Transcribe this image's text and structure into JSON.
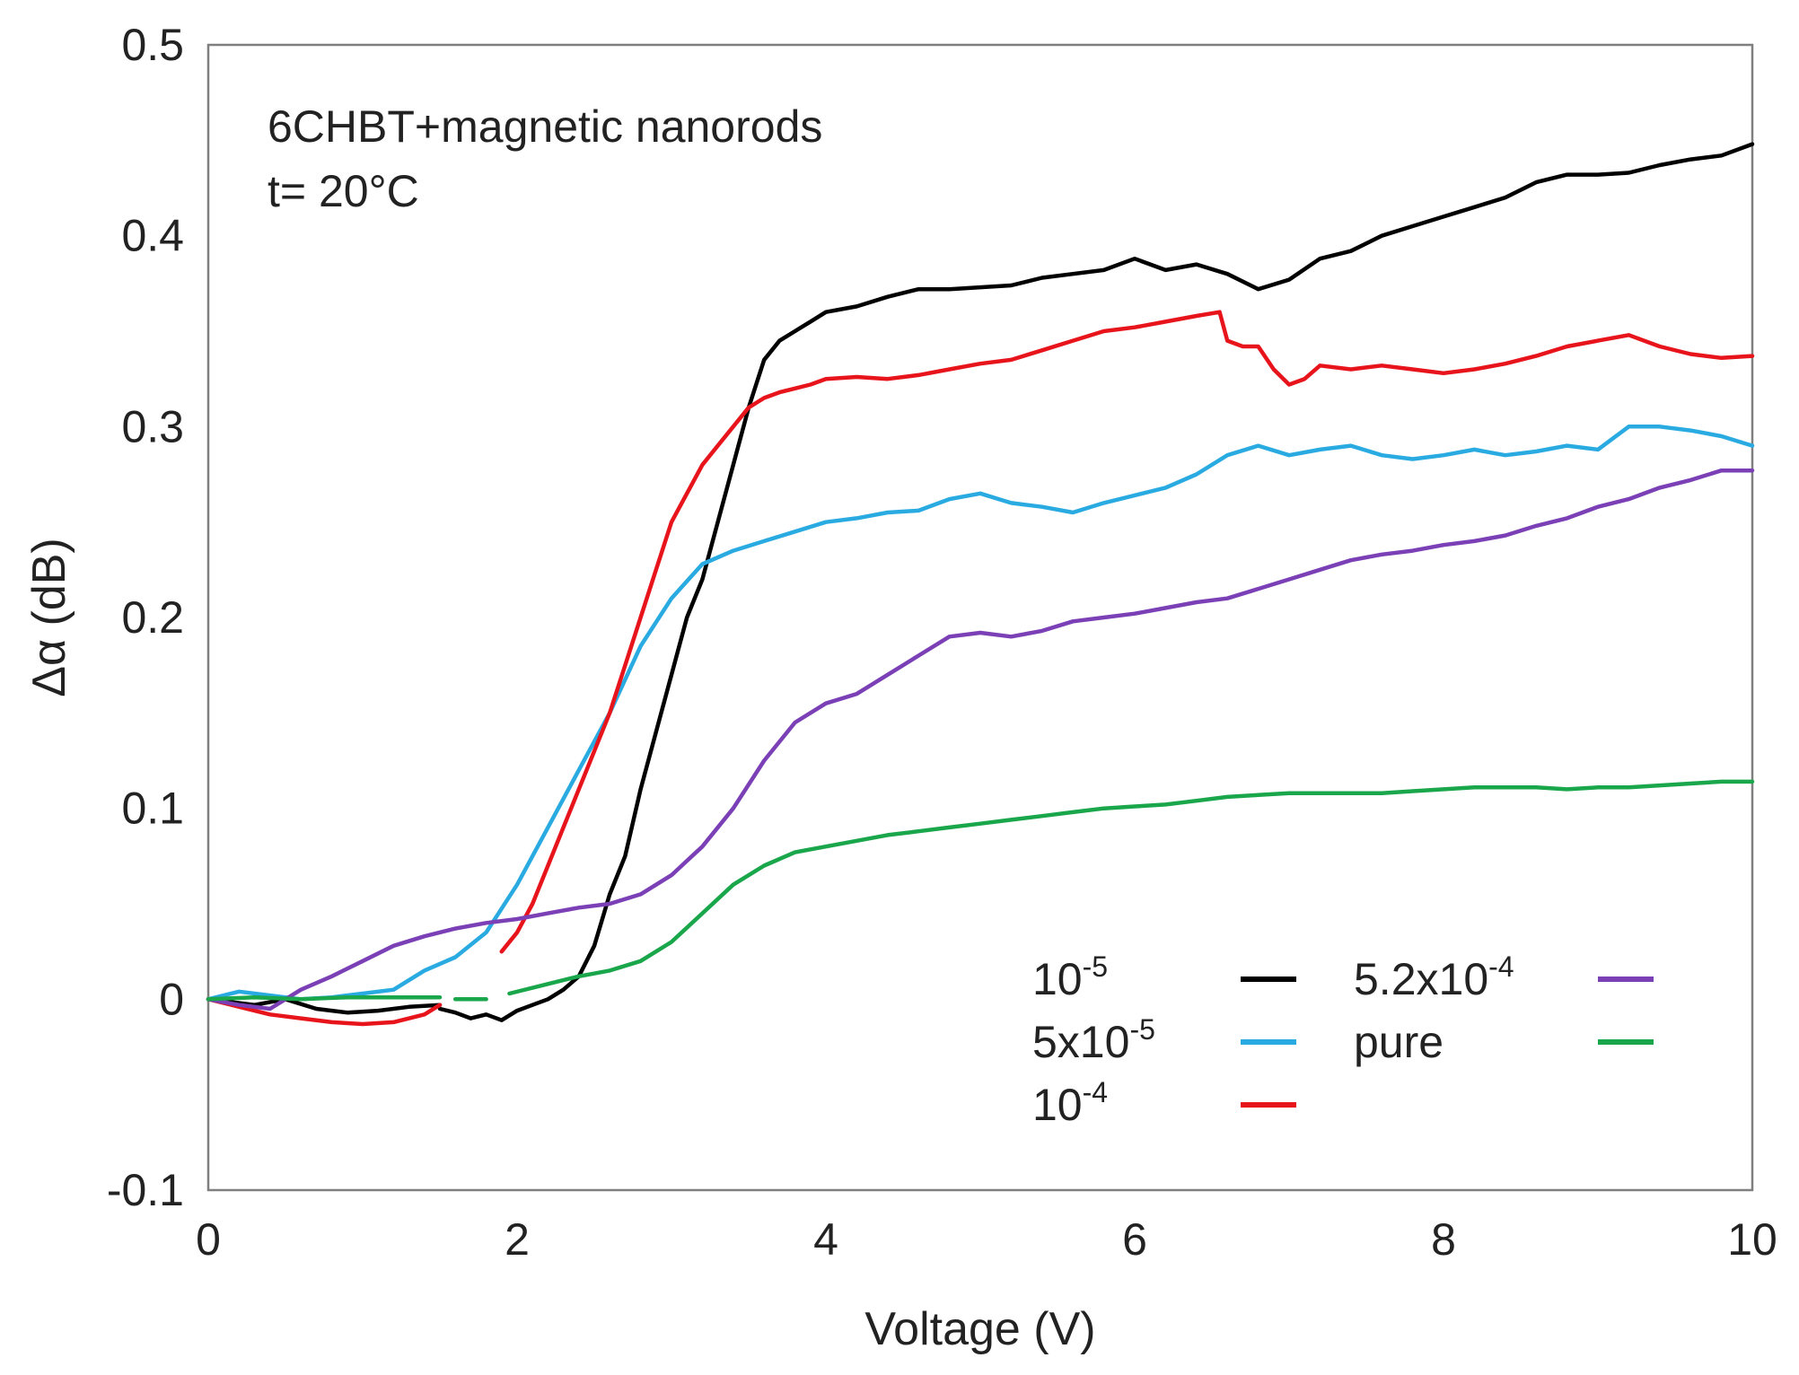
{
  "chart_data": {
    "type": "line",
    "title": "",
    "xlabel": "Voltage (V)",
    "ylabel": "Δα (dB)",
    "xlim": [
      0,
      10
    ],
    "ylim": [
      -0.1,
      0.5
    ],
    "xticks": [
      "0",
      "2",
      "4",
      "6",
      "8",
      "10"
    ],
    "yticks": [
      "-0.1",
      "0",
      "0.1",
      "0.2",
      "0.3",
      "0.4",
      "0.5"
    ],
    "grid": false,
    "annotations": [
      "6CHBT+magnetic nanorods",
      "t= 20°C"
    ],
    "legend_position": "bottom-right",
    "series": [
      {
        "name": "10-5",
        "label_base": "10",
        "label_sup": "-5",
        "color": "#000000",
        "segments": [
          {
            "x": [
              0,
              0.3,
              0.5,
              0.7,
              0.9,
              1.1,
              1.3,
              1.5
            ],
            "y": [
              0.0,
              -0.003,
              0.0,
              -0.005,
              -0.007,
              -0.006,
              -0.004,
              -0.003
            ]
          },
          {
            "x": [
              1.5,
              1.6,
              1.7,
              1.8,
              1.9,
              2.0,
              2.1,
              2.2,
              2.3,
              2.4,
              2.5,
              2.6,
              2.7,
              2.8,
              2.9,
              3.0,
              3.1,
              3.2,
              3.3,
              3.4,
              3.5,
              3.6,
              3.7,
              3.8,
              3.9,
              4.0,
              4.2,
              4.4,
              4.6,
              4.8,
              5.0,
              5.2,
              5.4,
              5.6,
              5.8,
              6.0,
              6.2,
              6.4,
              6.6,
              6.8,
              7.0,
              7.2,
              7.4,
              7.6,
              7.8,
              8.0,
              8.2,
              8.4,
              8.6,
              8.8,
              9.0,
              9.2,
              9.4,
              9.6,
              9.8,
              10.0
            ],
            "y": [
              -0.005,
              -0.007,
              -0.01,
              -0.008,
              -0.011,
              -0.006,
              -0.003,
              0.0,
              0.005,
              0.012,
              0.028,
              0.055,
              0.075,
              0.11,
              0.14,
              0.17,
              0.2,
              0.22,
              0.25,
              0.28,
              0.31,
              0.335,
              0.345,
              0.35,
              0.355,
              0.36,
              0.363,
              0.368,
              0.372,
              0.372,
              0.373,
              0.374,
              0.378,
              0.38,
              0.382,
              0.388,
              0.382,
              0.385,
              0.38,
              0.372,
              0.377,
              0.388,
              0.392,
              0.4,
              0.405,
              0.41,
              0.415,
              0.42,
              0.428,
              0.432,
              0.432,
              0.433,
              0.437,
              0.44,
              0.442,
              0.448
            ]
          }
        ]
      },
      {
        "name": "5x10-5",
        "label_base": "5x10",
        "label_sup": "-5",
        "color": "#29abe2",
        "segments": [
          {
            "x": [
              0,
              0.2,
              0.4,
              0.6,
              0.8,
              1.0,
              1.2,
              1.4,
              1.6,
              1.8,
              2.0,
              2.2,
              2.4,
              2.6,
              2.8,
              3.0,
              3.2,
              3.4,
              3.6,
              3.8,
              4.0,
              4.2,
              4.4,
              4.6,
              4.8,
              5.0,
              5.2,
              5.4,
              5.6,
              5.8,
              6.0,
              6.2,
              6.4,
              6.6,
              6.8,
              7.0,
              7.2,
              7.4,
              7.6,
              7.8,
              8.0,
              8.2,
              8.4,
              8.6,
              8.8,
              9.0,
              9.2,
              9.4,
              9.6,
              9.8,
              10.0
            ],
            "y": [
              0.0,
              0.004,
              0.002,
              0.0,
              0.001,
              0.003,
              0.005,
              0.015,
              0.022,
              0.035,
              0.06,
              0.09,
              0.12,
              0.15,
              0.185,
              0.21,
              0.228,
              0.235,
              0.24,
              0.245,
              0.25,
              0.252,
              0.255,
              0.256,
              0.262,
              0.265,
              0.26,
              0.258,
              0.255,
              0.26,
              0.264,
              0.268,
              0.275,
              0.285,
              0.29,
              0.285,
              0.288,
              0.29,
              0.285,
              0.283,
              0.285,
              0.288,
              0.285,
              0.287,
              0.29,
              0.288,
              0.3,
              0.3,
              0.298,
              0.295,
              0.29
            ]
          }
        ]
      },
      {
        "name": "10-4",
        "label_base": "10",
        "label_sup": "-4",
        "color": "#e8141c",
        "segments": [
          {
            "x": [
              0,
              0.2,
              0.4,
              0.6,
              0.8,
              1.0,
              1.2,
              1.4,
              1.5
            ],
            "y": [
              0.0,
              -0.004,
              -0.008,
              -0.01,
              -0.012,
              -0.013,
              -0.012,
              -0.008,
              -0.003
            ]
          },
          {
            "x": [
              1.9,
              2.0,
              2.1,
              2.2,
              2.3,
              2.4,
              2.5,
              2.6,
              2.7,
              2.8,
              2.9,
              3.0,
              3.1,
              3.2,
              3.3,
              3.4,
              3.5,
              3.6,
              3.7,
              3.8,
              3.9,
              4.0,
              4.2,
              4.4,
              4.6,
              4.8,
              5.0,
              5.2,
              5.4,
              5.6,
              5.8,
              6.0,
              6.2,
              6.4,
              6.55,
              6.6,
              6.7,
              6.8,
              6.9,
              7.0,
              7.1,
              7.2,
              7.4,
              7.6,
              7.8,
              8.0,
              8.2,
              8.4,
              8.6,
              8.8,
              9.0,
              9.2,
              9.4,
              9.6,
              9.8,
              10.0
            ],
            "y": [
              0.025,
              0.035,
              0.05,
              0.07,
              0.09,
              0.11,
              0.13,
              0.15,
              0.175,
              0.2,
              0.225,
              0.25,
              0.265,
              0.28,
              0.29,
              0.3,
              0.31,
              0.315,
              0.318,
              0.32,
              0.322,
              0.325,
              0.326,
              0.325,
              0.327,
              0.33,
              0.333,
              0.335,
              0.34,
              0.345,
              0.35,
              0.352,
              0.355,
              0.358,
              0.36,
              0.345,
              0.342,
              0.342,
              0.33,
              0.322,
              0.325,
              0.332,
              0.33,
              0.332,
              0.33,
              0.328,
              0.33,
              0.333,
              0.337,
              0.342,
              0.345,
              0.348,
              0.342,
              0.338,
              0.336,
              0.337
            ]
          }
        ]
      },
      {
        "name": "5.2x10-4",
        "label_base": "5.2x10",
        "label_sup": "-4",
        "color": "#7b3fb6",
        "segments": [
          {
            "x": [
              0,
              0.2,
              0.4,
              0.6,
              0.8,
              1.0,
              1.2,
              1.4,
              1.6,
              1.8,
              2.0,
              2.2,
              2.4,
              2.6,
              2.8,
              3.0,
              3.2,
              3.4,
              3.6,
              3.8,
              4.0,
              4.2,
              4.4,
              4.6,
              4.8,
              5.0,
              5.2,
              5.4,
              5.6,
              5.8,
              6.0,
              6.2,
              6.4,
              6.6,
              6.8,
              7.0,
              7.2,
              7.4,
              7.6,
              7.8,
              8.0,
              8.2,
              8.4,
              8.6,
              8.8,
              9.0,
              9.2,
              9.4,
              9.6,
              9.8,
              10.0
            ],
            "y": [
              0.0,
              -0.003,
              -0.005,
              0.005,
              0.012,
              0.02,
              0.028,
              0.033,
              0.037,
              0.04,
              0.042,
              0.045,
              0.048,
              0.05,
              0.055,
              0.065,
              0.08,
              0.1,
              0.125,
              0.145,
              0.155,
              0.16,
              0.17,
              0.18,
              0.19,
              0.192,
              0.19,
              0.193,
              0.198,
              0.2,
              0.202,
              0.205,
              0.208,
              0.21,
              0.215,
              0.22,
              0.225,
              0.23,
              0.233,
              0.235,
              0.238,
              0.24,
              0.243,
              0.248,
              0.252,
              0.258,
              0.262,
              0.268,
              0.272,
              0.277,
              0.277
            ]
          }
        ]
      },
      {
        "name": "pure",
        "label_base": "pure",
        "label_sup": "",
        "color": "#1aa64b",
        "segments": [
          {
            "x": [
              0,
              0.3,
              0.6,
              0.9,
              1.2,
              1.5
            ],
            "y": [
              0.0,
              0.001,
              0.0,
              0.001,
              0.001,
              0.001
            ]
          },
          {
            "x": [
              1.6,
              1.8
            ],
            "y": [
              0.0,
              0.0
            ]
          },
          {
            "x": [
              1.95,
              2.2,
              2.4,
              2.6,
              2.8,
              3.0,
              3.2,
              3.4,
              3.6,
              3.8,
              4.0,
              4.2,
              4.4,
              4.6,
              4.8,
              5.0,
              5.2,
              5.4,
              5.6,
              5.8,
              6.0,
              6.2,
              6.4,
              6.6,
              6.8,
              7.0,
              7.2,
              7.4,
              7.6,
              7.8,
              8.0,
              8.2,
              8.4,
              8.6,
              8.8,
              9.0,
              9.2,
              9.4,
              9.6,
              9.8,
              10.0
            ],
            "y": [
              0.003,
              0.008,
              0.012,
              0.015,
              0.02,
              0.03,
              0.045,
              0.06,
              0.07,
              0.077,
              0.08,
              0.083,
              0.086,
              0.088,
              0.09,
              0.092,
              0.094,
              0.096,
              0.098,
              0.1,
              0.101,
              0.102,
              0.104,
              0.106,
              0.107,
              0.108,
              0.108,
              0.108,
              0.108,
              0.109,
              0.11,
              0.111,
              0.111,
              0.111,
              0.11,
              0.111,
              0.111,
              0.112,
              0.113,
              0.114,
              0.114
            ]
          }
        ]
      }
    ]
  }
}
